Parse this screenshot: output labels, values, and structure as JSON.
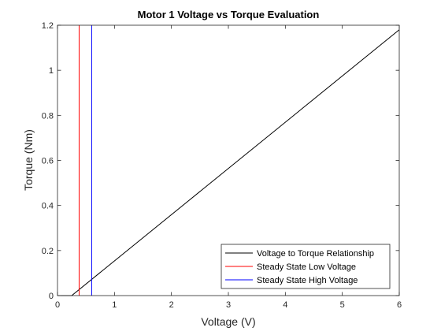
{
  "chart_data": {
    "type": "line",
    "title": "Motor 1 Voltage vs Torque Evaluation",
    "xlabel": "Voltage (V)",
    "ylabel": "Torque (Nm)",
    "xlim": [
      0,
      6
    ],
    "ylim": [
      0,
      1.2
    ],
    "xticks": [
      0,
      1,
      2,
      3,
      4,
      5,
      6
    ],
    "yticks": [
      0,
      0.2,
      0.4,
      0.6,
      0.8,
      1,
      1.2
    ],
    "xtick_labels": [
      "0",
      "1",
      "2",
      "3",
      "4",
      "5",
      "6"
    ],
    "ytick_labels": [
      "0",
      "0.2",
      "0.4",
      "0.6",
      "0.8",
      "1",
      "1.2"
    ],
    "grid": false,
    "legend_position": "bottom-right",
    "series": [
      {
        "name": "Voltage to Torque Relationship",
        "color": "#000000",
        "x": [
          0,
          0.25,
          6
        ],
        "y": [
          0,
          0,
          1.18
        ]
      },
      {
        "name": "Steady State Low Voltage",
        "color": "#ff0000",
        "x": [
          0.38,
          0.38
        ],
        "y": [
          0,
          1.2
        ]
      },
      {
        "name": "Steady State High Voltage",
        "color": "#0000ff",
        "x": [
          0.6,
          0.6
        ],
        "y": [
          0,
          1.2
        ]
      }
    ]
  }
}
